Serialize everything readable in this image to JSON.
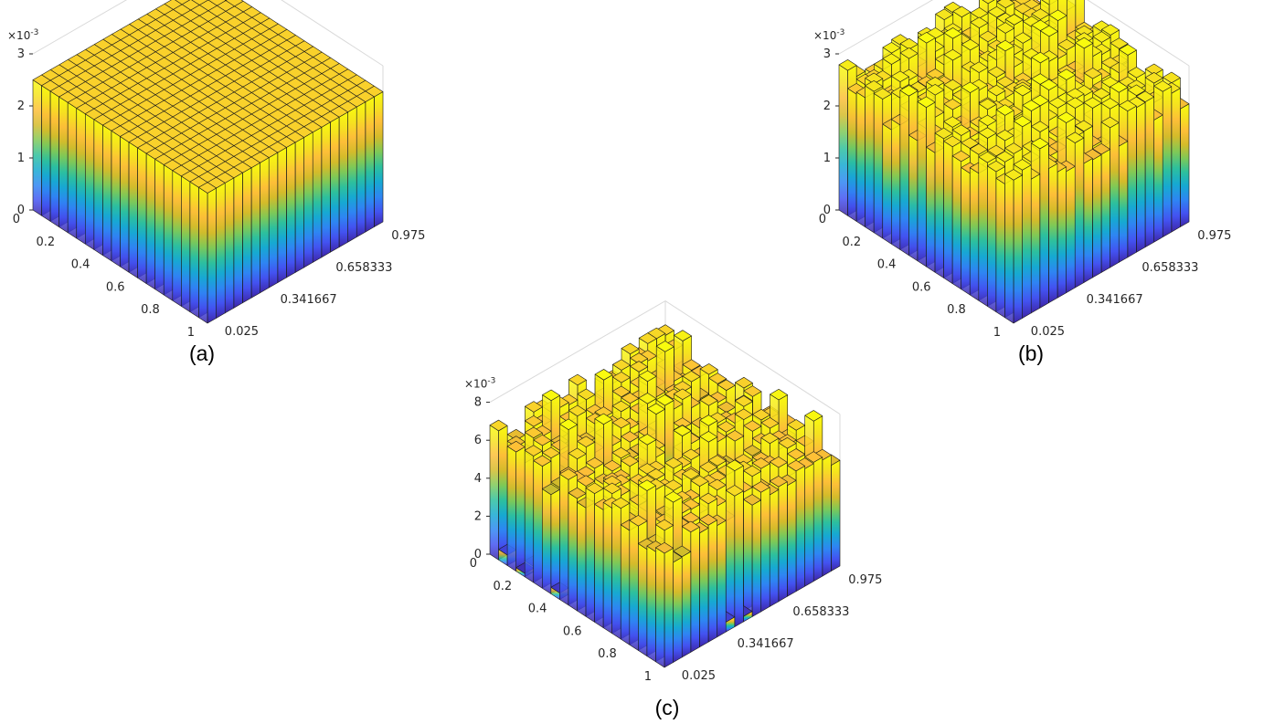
{
  "colormap": [
    "#3e26a8",
    "#4352f1",
    "#2e85f3",
    "#16a9d2",
    "#2dc09d",
    "#7ec957",
    "#d4bb2a",
    "#fdbe38",
    "#f5e31e",
    "#f9fb0e"
  ],
  "edge_color": "#1a1a1a",
  "chart_data": [
    {
      "type": "bar3",
      "panel_label": "(a)",
      "x_ticks": [
        "0.025",
        "0.341667",
        "0.658333",
        "0.975"
      ],
      "y_ticks": [
        "0",
        "0.2",
        "0.4",
        "0.6",
        "0.8",
        "1"
      ],
      "z_ticks": [
        "0",
        "1",
        "2",
        "3"
      ],
      "z_exponent": "×10",
      "z_exponent_power": "-3",
      "zlim": [
        0,
        3
      ],
      "grid": [
        20,
        20
      ],
      "base_value": 2.5,
      "variation": 0.0,
      "outlier_frac": 0.0
    },
    {
      "type": "bar3",
      "panel_label": "(b)",
      "x_ticks": [
        "0.025",
        "0.341667",
        "0.658333",
        "0.975"
      ],
      "y_ticks": [
        "0",
        "0.2",
        "0.4",
        "0.6",
        "0.8",
        "1"
      ],
      "z_ticks": [
        "0",
        "1",
        "2",
        "3"
      ],
      "z_exponent": "×10",
      "z_exponent_power": "-3",
      "zlim": [
        0,
        3
      ],
      "grid": [
        20,
        20
      ],
      "base_value": 2.5,
      "variation": 0.35,
      "outlier_frac": 0.0
    },
    {
      "type": "bar3",
      "panel_label": "(c)",
      "x_ticks": [
        "0.025",
        "0.341667",
        "0.658333",
        "0.975"
      ],
      "y_ticks": [
        "0",
        "0.2",
        "0.4",
        "0.6",
        "0.8",
        "1"
      ],
      "z_ticks": [
        "0",
        "2",
        "4",
        "6",
        "8"
      ],
      "z_exponent": "×10",
      "z_exponent_power": "-3",
      "zlim": [
        0,
        8
      ],
      "grid": [
        20,
        20
      ],
      "base_value": 6.0,
      "variation": 0.9,
      "outlier_frac": 0.08
    }
  ]
}
